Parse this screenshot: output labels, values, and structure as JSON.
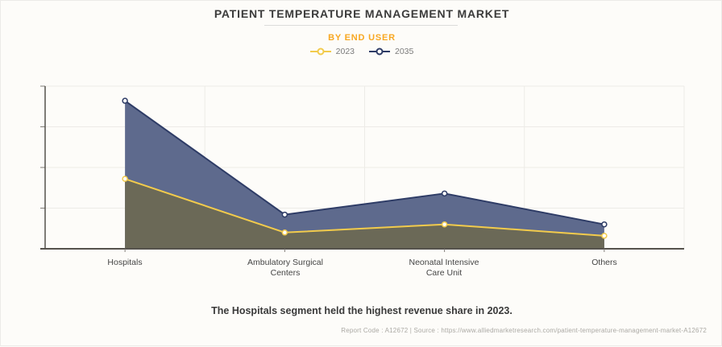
{
  "header": {
    "title": "PATIENT TEMPERATURE MANAGEMENT MARKET",
    "subtitle": "BY END USER"
  },
  "chart_data": {
    "type": "area",
    "title": "PATIENT TEMPERATURE MANAGEMENT MARKET",
    "subtitle": "BY END USER",
    "categories": [
      "Hospitals",
      "Ambulatory Surgical Centers",
      "Neonatal Intensive Care Unit",
      "Others"
    ],
    "series": [
      {
        "name": "2023",
        "line_color": "#F2CB4C",
        "fill_color": "#6B6957",
        "values": [
          43,
          10,
          15,
          8
        ]
      },
      {
        "name": "2035",
        "line_color": "#2E3C66",
        "fill_color": "#5E6A8D",
        "values": [
          91,
          21,
          34,
          15
        ]
      }
    ],
    "xlabel": "",
    "ylabel": "",
    "ylim": [
      0,
      100
    ],
    "y_tick_values": [
      0,
      25,
      50,
      75,
      100
    ],
    "y_tick_labels_visible": false,
    "grid": true,
    "legend_position": "top",
    "note": "Y axis shows no numeric labels; values are relative units where 100 = top gridline.",
    "colors": {
      "gridline": "#EDEBE7",
      "axis": "#55524C",
      "tick": "#807D78",
      "background": "#FDFCF9",
      "subtitle_accent": "#F8A823"
    }
  },
  "footnote": {
    "statement": "The Hospitals segment held the highest revenue share in 2023."
  },
  "footer": {
    "text": "Report Code : A12672  |  Source : https://www.alliedmarketresearch.com/patient-temperature-management-market-A12672"
  }
}
